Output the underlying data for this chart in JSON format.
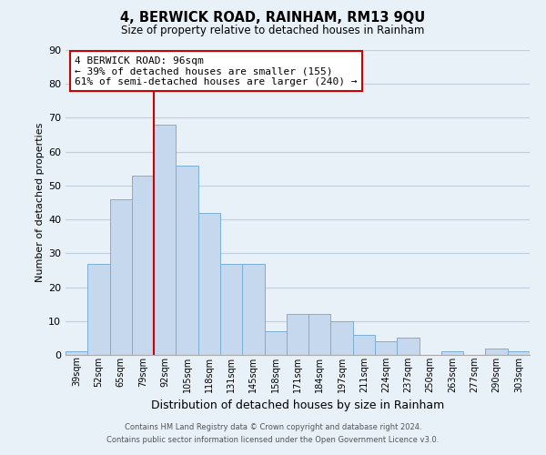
{
  "title": "4, BERWICK ROAD, RAINHAM, RM13 9QU",
  "subtitle": "Size of property relative to detached houses in Rainham",
  "xlabel": "Distribution of detached houses by size in Rainham",
  "ylabel": "Number of detached properties",
  "bar_values": [
    1,
    27,
    46,
    53,
    68,
    56,
    42,
    27,
    27,
    7,
    12,
    12,
    10,
    6,
    4,
    5,
    0,
    1,
    0,
    2,
    1
  ],
  "bin_labels": [
    "39sqm",
    "52sqm",
    "65sqm",
    "79sqm",
    "92sqm",
    "105sqm",
    "118sqm",
    "131sqm",
    "145sqm",
    "158sqm",
    "171sqm",
    "184sqm",
    "197sqm",
    "211sqm",
    "224sqm",
    "237sqm",
    "250sqm",
    "263sqm",
    "277sqm",
    "290sqm",
    "303sqm"
  ],
  "bar_color": "#c5d8ed",
  "bar_edge_color": "#7bafd4",
  "grid_color": "#c0cfe0",
  "background_color": "#e8f0f8",
  "property_line_index": 4,
  "property_line_color": "#cc0000",
  "annotation_text_line1": "4 BERWICK ROAD: 96sqm",
  "annotation_text_line2": "← 39% of detached houses are smaller (155)",
  "annotation_text_line3": "61% of semi-detached houses are larger (240) →",
  "annotation_box_color": "#ffffff",
  "annotation_box_edge_color": "#cc0000",
  "ylim": [
    0,
    90
  ],
  "yticks": [
    0,
    10,
    20,
    30,
    40,
    50,
    60,
    70,
    80,
    90
  ],
  "footer_line1": "Contains HM Land Registry data © Crown copyright and database right 2024.",
  "footer_line2": "Contains public sector information licensed under the Open Government Licence v3.0."
}
